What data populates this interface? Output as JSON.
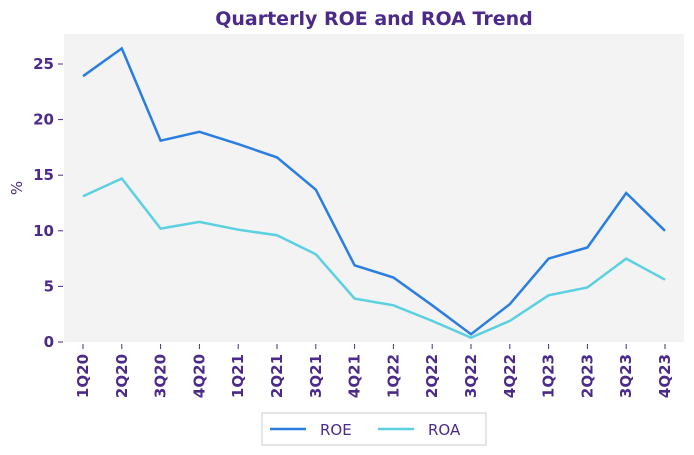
{
  "chart_data": {
    "type": "line",
    "title": "Quarterly ROE and ROA Trend",
    "xlabel": "",
    "ylabel": "%",
    "ylim": [
      0,
      27.7
    ],
    "yticks": [
      0,
      5,
      10,
      15,
      20,
      25
    ],
    "grid": false,
    "legend_position": "bottom-center",
    "categories": [
      "1Q20",
      "2Q20",
      "3Q20",
      "4Q20",
      "1Q21",
      "2Q21",
      "3Q21",
      "4Q21",
      "1Q22",
      "2Q22",
      "3Q22",
      "4Q22",
      "1Q23",
      "2Q23",
      "3Q23",
      "4Q23"
    ],
    "series": [
      {
        "name": "ROE",
        "color": "#2A7DE1",
        "values": [
          23.9,
          26.4,
          18.1,
          18.9,
          17.8,
          16.6,
          13.7,
          6.9,
          5.8,
          3.3,
          0.7,
          3.4,
          7.5,
          8.5,
          13.4,
          10.0
        ]
      },
      {
        "name": "ROA",
        "color": "#5BD0E0",
        "values": [
          13.1,
          14.7,
          10.2,
          10.8,
          10.1,
          9.6,
          7.9,
          3.9,
          3.3,
          1.9,
          0.4,
          1.9,
          4.2,
          4.9,
          7.5,
          5.6
        ]
      }
    ],
    "colors": {
      "text": "#4B2A8A",
      "plot_background": "#F3F3F3",
      "legend_border": "#CCCCCC"
    }
  }
}
